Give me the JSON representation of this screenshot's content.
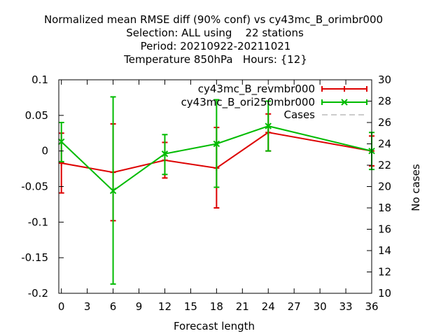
{
  "chart_data": {
    "type": "line",
    "title_lines": [
      "Normalized mean RMSE diff (90% conf) vs cy43mc_B_orimbr000",
      "Selection: ALL using    22 stations",
      "Period: 20210922-20211021",
      "Temperature 850hPa   Hours: {12}"
    ],
    "xlabel": "Forecast length",
    "ylabel": "",
    "y2label": "No cases",
    "xlim": [
      -0.3,
      36
    ],
    "ylim": [
      -0.2,
      0.1
    ],
    "y2lim": [
      10,
      30
    ],
    "xticks": [
      0,
      3,
      6,
      9,
      12,
      15,
      18,
      21,
      24,
      27,
      30,
      33,
      36
    ],
    "yticks": [
      0.1,
      0.05,
      0,
      -0.05,
      -0.1,
      -0.15,
      -0.2
    ],
    "ytick_labels": [
      "0.1",
      "0.05",
      "0",
      "-0.05",
      "-0.1",
      "-0.15",
      "-0.2"
    ],
    "y2ticks": [
      30,
      28,
      26,
      24,
      22,
      20,
      18,
      16,
      14,
      12,
      10
    ],
    "grid": false,
    "legend_position": "top-right",
    "series": [
      {
        "name": "cy43mc_B_revmbr000",
        "color": "#dd0000",
        "marker": "plus",
        "x": [
          0,
          6,
          12,
          18,
          24,
          36
        ],
        "y": [
          -0.017,
          -0.03,
          -0.013,
          -0.024,
          0.026,
          0.0
        ],
        "err_low": [
          -0.059,
          -0.098,
          -0.038,
          -0.08,
          0.0,
          -0.021
        ],
        "err_high": [
          0.025,
          0.038,
          0.012,
          0.033,
          0.052,
          0.021
        ]
      },
      {
        "name": "cy43mc_B_ori250mbr000",
        "color": "#00bb00",
        "marker": "cross",
        "x": [
          0,
          6,
          12,
          18,
          24,
          36
        ],
        "y": [
          0.013,
          -0.056,
          -0.004,
          0.01,
          0.035,
          0.0
        ],
        "err_low": [
          -0.015,
          -0.187,
          -0.033,
          -0.051,
          0.0,
          -0.026
        ],
        "err_high": [
          0.04,
          0.076,
          0.023,
          0.072,
          0.07,
          0.026
        ]
      },
      {
        "name": "Cases",
        "color": "#999999",
        "dash": true,
        "axis": "y2",
        "x": [
          0,
          6,
          12,
          18,
          24,
          36
        ],
        "y": [
          30,
          30,
          30,
          30,
          30,
          30
        ]
      }
    ]
  }
}
